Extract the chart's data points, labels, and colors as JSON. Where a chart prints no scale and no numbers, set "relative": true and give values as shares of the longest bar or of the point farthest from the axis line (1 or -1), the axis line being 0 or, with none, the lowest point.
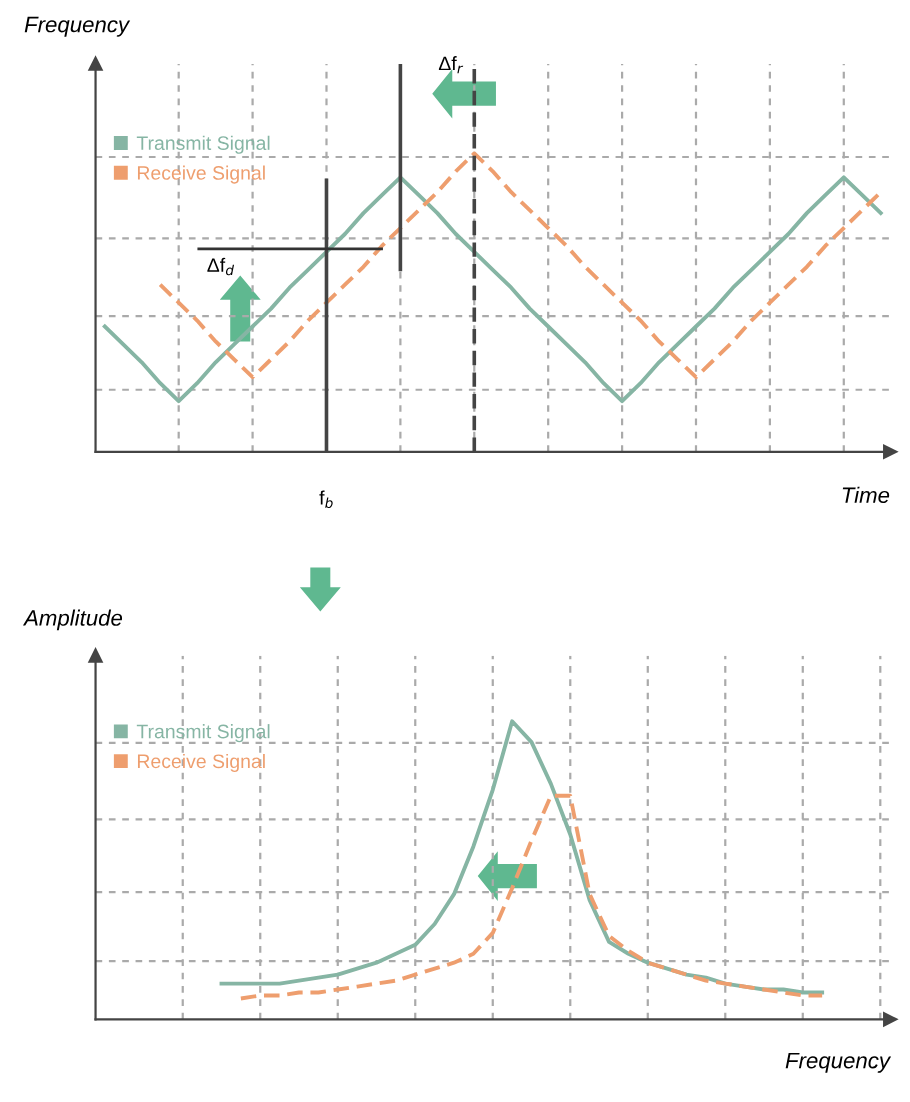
{
  "chart_data": [
    {
      "type": "line",
      "relative": true,
      "xlabel": "Time",
      "ylabel": "Frequency",
      "legend": "top left",
      "grid": true,
      "categories": [
        null,
        null,
        null,
        null,
        null,
        null,
        null,
        null,
        null,
        null,
        null,
        null,
        null,
        null,
        null,
        null,
        null,
        null,
        null,
        null,
        null,
        null,
        null,
        null,
        null,
        null,
        null,
        null,
        null,
        null,
        null,
        null,
        null,
        null,
        null,
        null,
        null,
        null,
        null,
        null,
        null,
        null,
        null
      ],
      "series": [
        {
          "name": "Transmit Signal",
          "color": "#86b5a4",
          "line_style": "solid",
          "values": [
            0.42,
            0.36,
            0.3,
            0.23,
            0.17,
            0.23,
            0.3,
            0.36,
            0.42,
            0.48,
            0.55,
            0.61,
            0.67,
            0.73,
            0.8,
            0.86,
            0.92,
            0.86,
            0.8,
            0.73,
            0.67,
            0.61,
            0.55,
            0.48,
            0.42,
            0.36,
            0.3,
            0.23,
            0.17,
            0.23,
            0.3,
            0.36,
            0.42,
            0.48,
            0.55,
            0.61,
            0.67,
            0.73,
            0.8,
            0.86,
            0.92,
            0.86,
            0.8
          ]
        },
        {
          "name": "Receive Signal",
          "color": "#ee9e6e",
          "line_style": "dashed",
          "values": [
            null,
            null,
            null,
            0.56,
            0.5,
            0.44,
            0.37,
            0.31,
            0.25,
            0.31,
            0.37,
            0.44,
            0.5,
            0.56,
            0.62,
            0.69,
            0.75,
            0.81,
            0.87,
            0.94,
            1.0,
            0.94,
            0.87,
            0.81,
            0.75,
            0.69,
            0.62,
            0.56,
            0.5,
            0.44,
            0.37,
            0.31,
            0.25,
            0.31,
            0.37,
            0.44,
            0.5,
            0.56,
            0.62,
            0.69,
            0.75,
            0.81,
            0.87
          ]
        }
      ],
      "annotations": [
        "f$_{b}$",
        "Δf$_{r}$"
      ],
      "ref_lines": [
        {
          "axis": "y",
          "value": 0.68,
          "label": "Δf$_{d}$",
          "color": "#333333",
          "line_style": "solid"
        }
      ]
    },
    {
      "type": "line",
      "relative": true,
      "xlabel": "Frequency",
      "ylabel": "Amplitude",
      "legend": "top left",
      "grid": true,
      "categories": [
        null,
        null,
        null,
        null,
        null,
        null,
        null,
        null,
        null,
        null,
        null,
        null,
        null,
        null,
        null,
        null,
        null,
        null,
        null,
        null,
        null,
        null,
        null,
        null,
        null,
        null,
        null,
        null,
        null,
        null,
        null,
        null,
        null,
        null,
        null,
        null,
        null,
        null,
        null,
        null,
        null
      ],
      "series": [
        {
          "name": "Transmit Signal",
          "color": "#86b5a4",
          "line_style": "solid",
          "values": [
            null,
            null,
            null,
            null,
            null,
            null,
            0.12,
            0.12,
            0.12,
            0.12,
            0.13,
            0.14,
            0.15,
            0.17,
            0.19,
            0.22,
            0.25,
            0.32,
            0.42,
            0.58,
            0.77,
            1.0,
            0.93,
            0.79,
            0.62,
            0.4,
            0.26,
            0.22,
            0.19,
            0.17,
            0.15,
            0.14,
            0.12,
            0.11,
            0.1,
            0.1,
            0.09,
            0.09,
            null,
            null,
            null
          ]
        },
        {
          "name": "Receive Signal",
          "color": "#ee9e6e",
          "line_style": "dashed",
          "values": [
            null,
            null,
            null,
            null,
            null,
            null,
            null,
            0.07,
            0.08,
            0.08,
            0.09,
            0.09,
            0.1,
            0.11,
            0.12,
            0.13,
            0.15,
            0.17,
            0.19,
            0.22,
            0.29,
            0.44,
            0.6,
            0.75,
            0.75,
            0.42,
            0.28,
            0.23,
            0.19,
            0.17,
            0.15,
            0.13,
            0.12,
            0.11,
            0.1,
            0.09,
            0.08,
            0.08,
            null,
            null,
            null
          ]
        }
      ]
    }
  ]
}
